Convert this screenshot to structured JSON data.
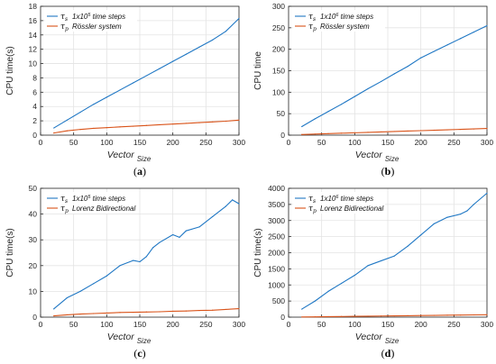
{
  "chart_data": [
    {
      "type": "line",
      "caption": "(a)",
      "ylabel": "CPU time(s)",
      "xlabel": "Vector",
      "xlabel_sub": "Size",
      "xlim": [
        0,
        300
      ],
      "ylim": [
        0,
        18
      ],
      "xticks": [
        0,
        50,
        100,
        150,
        200,
        250,
        300
      ],
      "yticks": [
        0,
        2,
        4,
        6,
        8,
        10,
        12,
        14,
        16,
        18
      ],
      "grid": true,
      "legend": {
        "placement": "top-left",
        "note_base": "1x10",
        "note_exp": "5",
        "note_tail": " time steps",
        "system": "Rössler system",
        "sym": "τ",
        "sub_s": "s",
        "sub_p": "p"
      },
      "series": [
        {
          "color": "#1f77c4",
          "x": [
            20,
            40,
            60,
            80,
            100,
            120,
            140,
            160,
            180,
            200,
            220,
            240,
            260,
            280,
            300
          ],
          "y": [
            1.0,
            2.1,
            3.2,
            4.3,
            5.3,
            6.3,
            7.3,
            8.3,
            9.3,
            10.3,
            11.3,
            12.3,
            13.3,
            14.5,
            16.3
          ]
        },
        {
          "color": "#d95319",
          "x": [
            20,
            40,
            60,
            80,
            100,
            120,
            140,
            160,
            180,
            200,
            220,
            240,
            260,
            280,
            300
          ],
          "y": [
            0.3,
            0.6,
            0.8,
            0.95,
            1.05,
            1.15,
            1.25,
            1.35,
            1.45,
            1.55,
            1.65,
            1.75,
            1.85,
            1.95,
            2.1
          ]
        }
      ]
    },
    {
      "type": "line",
      "caption": "(b)",
      "ylabel": "CPU time",
      "xlabel": "Vector",
      "xlabel_sub": "Size",
      "xlim": [
        0,
        300
      ],
      "ylim": [
        0,
        300
      ],
      "xticks": [
        0,
        50,
        100,
        150,
        200,
        250,
        300
      ],
      "yticks": [
        0,
        50,
        100,
        150,
        200,
        250,
        300
      ],
      "grid": true,
      "legend": {
        "placement": "top-left",
        "note_base": "1x10",
        "note_exp": "6",
        "note_tail": " time steps",
        "system": "Rössler system",
        "sym": "τ",
        "sub_s": "s",
        "sub_p": "p"
      },
      "series": [
        {
          "color": "#1f77c4",
          "x": [
            20,
            40,
            60,
            80,
            100,
            120,
            140,
            160,
            180,
            200,
            220,
            240,
            260,
            280,
            300
          ],
          "y": [
            20,
            38,
            55,
            72,
            90,
            108,
            125,
            143,
            160,
            180,
            195,
            210,
            225,
            240,
            255
          ]
        },
        {
          "color": "#d95319",
          "x": [
            20,
            40,
            60,
            80,
            100,
            120,
            140,
            160,
            180,
            200,
            220,
            240,
            260,
            280,
            300
          ],
          "y": [
            1.5,
            2.5,
            3.5,
            4.5,
            5.5,
            6.5,
            7.5,
            8.5,
            9.5,
            10.5,
            11.5,
            12.5,
            13.5,
            14.5,
            15.5
          ]
        }
      ]
    },
    {
      "type": "line",
      "caption": "(c)",
      "ylabel": "CPU time(s)",
      "xlabel": "Vector",
      "xlabel_sub": "Size",
      "xlim": [
        0,
        300
      ],
      "ylim": [
        0,
        50
      ],
      "xticks": [
        0,
        50,
        100,
        150,
        200,
        250,
        300
      ],
      "yticks": [
        0,
        10,
        20,
        30,
        40,
        50
      ],
      "grid": true,
      "legend": {
        "placement": "top-left",
        "note_base": "1x10",
        "note_exp": "5",
        "note_tail": " time steps",
        "system": "Lorenz Bidirectional",
        "sym": "τ",
        "sub_s": "s",
        "sub_p": "p"
      },
      "series": [
        {
          "color": "#1f77c4",
          "x": [
            20,
            40,
            60,
            80,
            100,
            120,
            140,
            150,
            160,
            170,
            180,
            200,
            210,
            220,
            240,
            260,
            280,
            290,
            300
          ],
          "y": [
            3.2,
            7.5,
            10.0,
            13.0,
            16.0,
            20.0,
            22.0,
            21.5,
            23.5,
            27.0,
            29.0,
            32.0,
            31.0,
            33.5,
            35.0,
            39.0,
            43.0,
            45.5,
            44.0
          ]
        },
        {
          "color": "#d95319",
          "x": [
            20,
            40,
            60,
            80,
            100,
            120,
            140,
            160,
            180,
            200,
            220,
            240,
            260,
            280,
            300
          ],
          "y": [
            0.5,
            0.9,
            1.2,
            1.4,
            1.6,
            1.8,
            1.9,
            2.0,
            2.1,
            2.3,
            2.4,
            2.6,
            2.7,
            3.0,
            3.3
          ]
        }
      ]
    },
    {
      "type": "line",
      "caption": "(d)",
      "ylabel": "CPU time(s)",
      "xlabel": "Vector",
      "xlabel_sub": "Size",
      "xlim": [
        0,
        300
      ],
      "ylim": [
        0,
        4000
      ],
      "xticks": [
        0,
        50,
        100,
        150,
        200,
        250,
        300
      ],
      "yticks": [
        0,
        500,
        1000,
        1500,
        2000,
        2500,
        3000,
        3500,
        4000
      ],
      "grid": true,
      "legend": {
        "placement": "top-left",
        "note_base": "1x10",
        "note_exp": "6",
        "note_tail": " time steps",
        "system": "Lorenz Bidirectional",
        "sym": "τ",
        "sub_s": "s",
        "sub_p": "p"
      },
      "series": [
        {
          "color": "#1f77c4",
          "x": [
            20,
            40,
            60,
            80,
            100,
            120,
            140,
            160,
            180,
            200,
            220,
            240,
            260,
            270,
            280,
            300
          ],
          "y": [
            250,
            500,
            800,
            1050,
            1300,
            1600,
            1750,
            1900,
            2200,
            2550,
            2900,
            3100,
            3200,
            3300,
            3500,
            3850
          ]
        },
        {
          "color": "#d95319",
          "x": [
            20,
            40,
            60,
            80,
            100,
            120,
            140,
            160,
            180,
            200,
            220,
            240,
            260,
            280,
            300
          ],
          "y": [
            5,
            10,
            15,
            20,
            25,
            30,
            35,
            40,
            45,
            50,
            55,
            60,
            65,
            70,
            75
          ]
        }
      ]
    }
  ]
}
